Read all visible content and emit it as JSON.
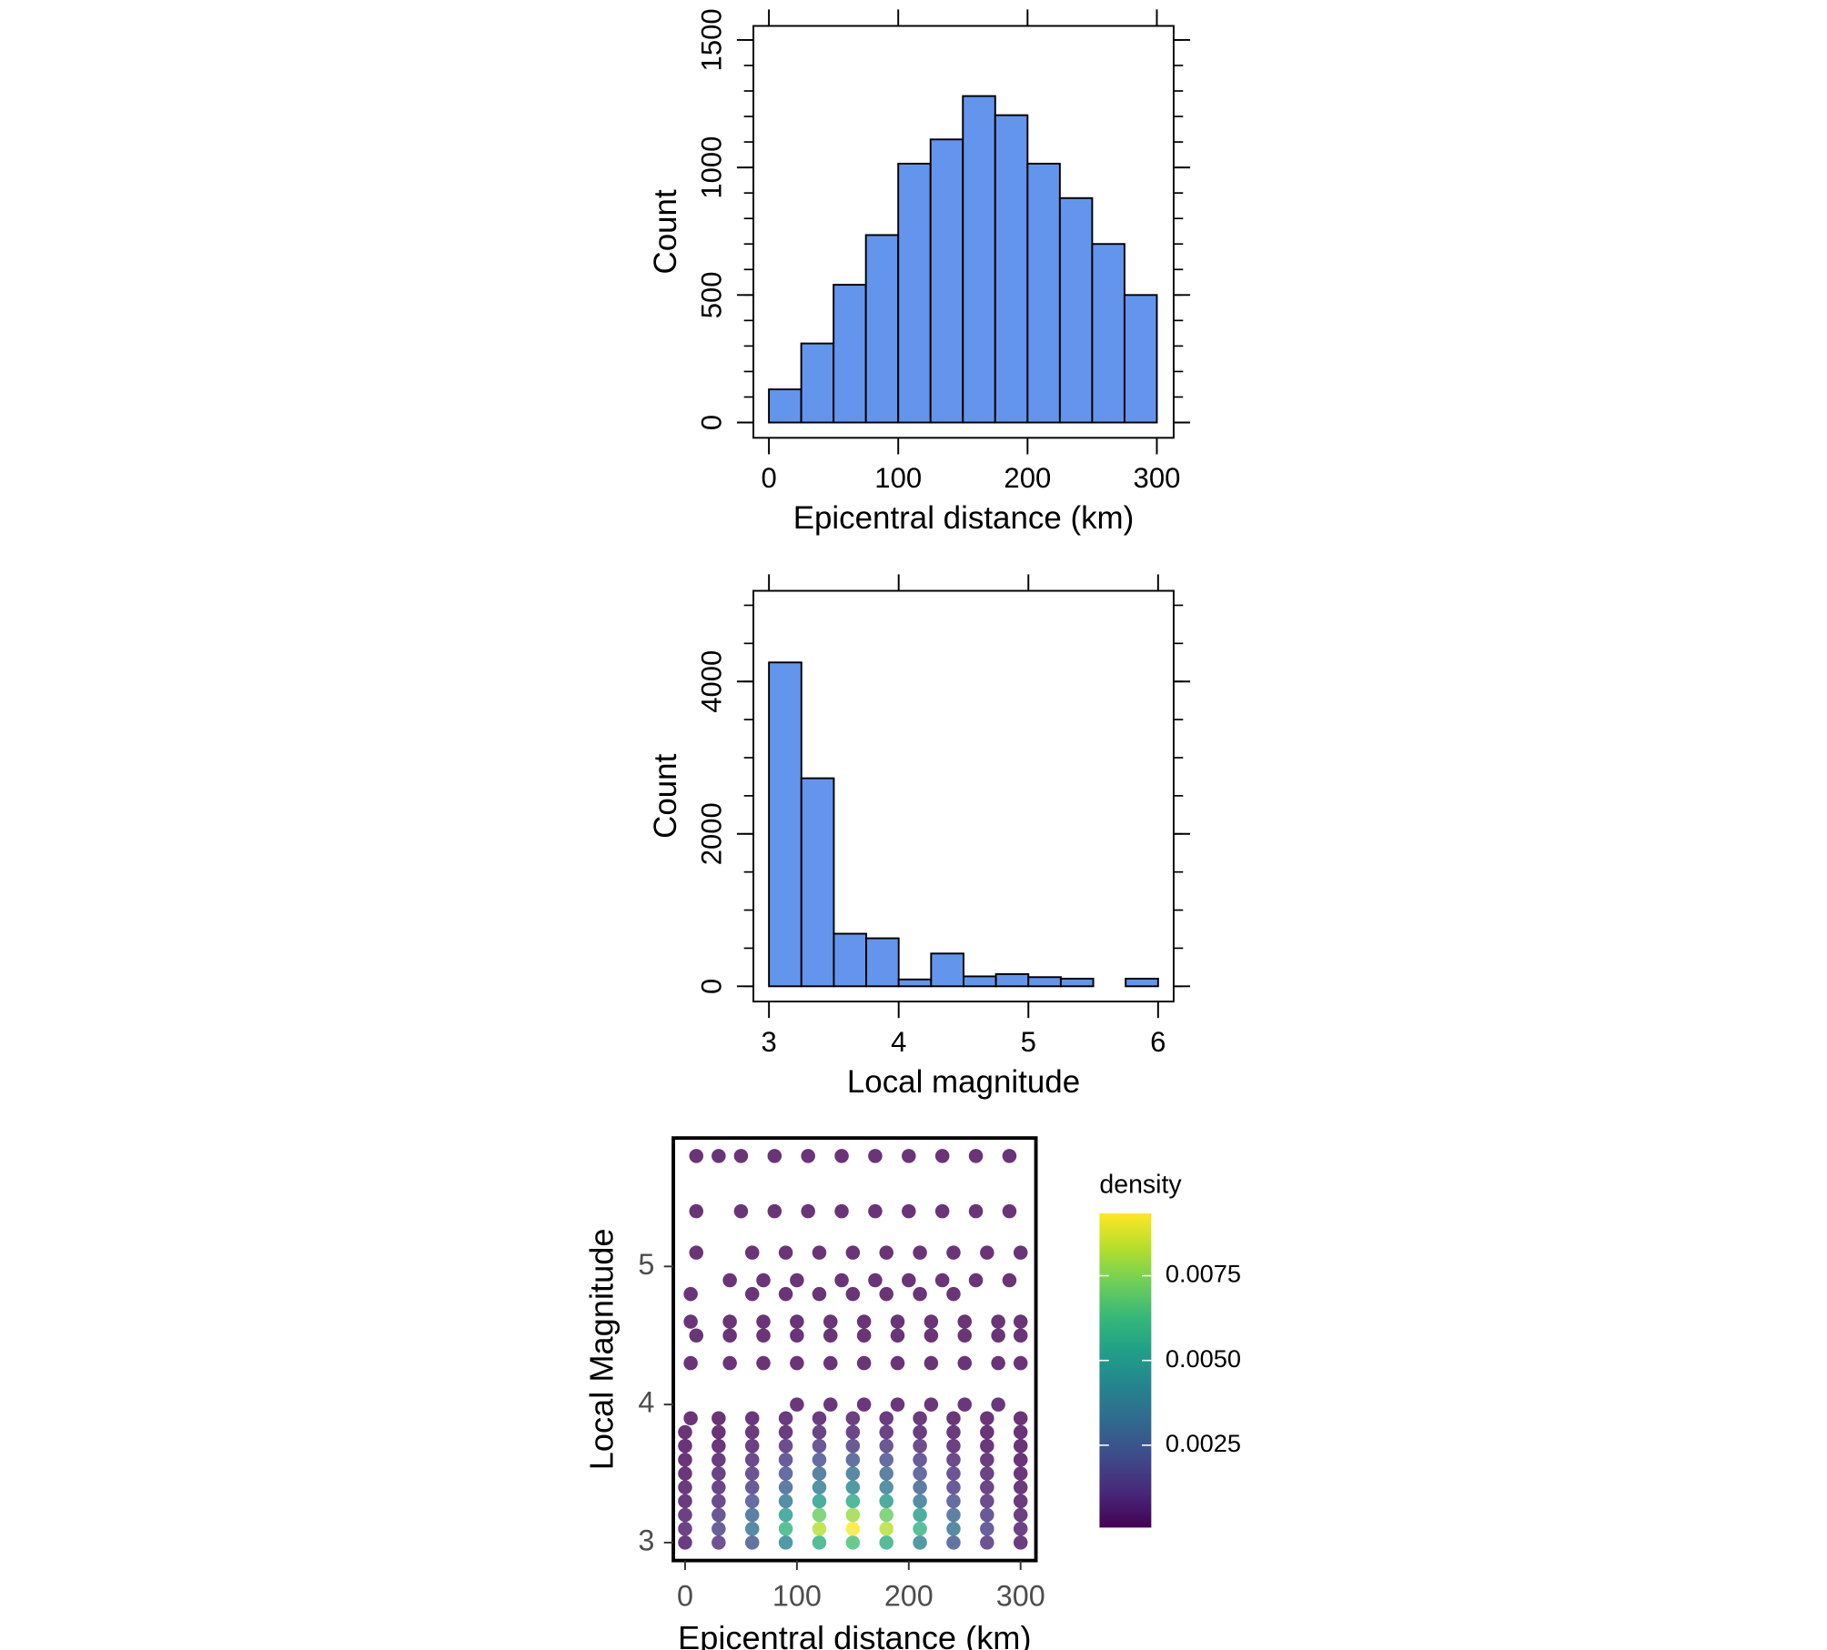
{
  "chart_data": [
    {
      "type": "histogram",
      "xlabel": "Epicentral distance (km)",
      "ylabel": "Count",
      "bins": [
        0,
        25,
        50,
        75,
        100,
        125,
        150,
        175,
        200,
        225,
        250,
        275,
        300
      ],
      "values": [
        130,
        310,
        540,
        735,
        1015,
        1110,
        1280,
        1205,
        1015,
        880,
        700,
        500
      ],
      "color": "#6495ed",
      "xlim": [
        -12,
        313
      ],
      "ylim": [
        -60,
        1555
      ],
      "xticks": [
        0,
        100,
        200,
        300
      ],
      "yticks": [
        0,
        500,
        1000,
        1500
      ],
      "yminorticks": [
        0,
        100,
        200,
        300,
        400,
        500,
        600,
        700,
        800,
        900,
        1000,
        1100,
        1200,
        1300,
        1400,
        1500
      ]
    },
    {
      "type": "histogram",
      "xlabel": "Local magnitude",
      "ylabel": "Count",
      "bins": [
        3.0,
        3.25,
        3.5,
        3.75,
        4.0,
        4.25,
        4.5,
        4.75,
        5.0,
        5.25,
        5.5,
        5.75,
        6.0
      ],
      "values": [
        4250,
        2730,
        690,
        630,
        90,
        430,
        130,
        160,
        120,
        100,
        0,
        100
      ],
      "color": "#6495ed",
      "xlim": [
        2.88,
        6.12
      ],
      "ylim": [
        -200,
        5190
      ],
      "xticks": [
        3,
        4,
        5,
        6
      ],
      "yticks": [
        0,
        2000,
        4000
      ],
      "yminorticks": [
        0,
        500,
        1000,
        1500,
        2000,
        2500,
        3000,
        3500,
        4000,
        4500,
        5000
      ]
    },
    {
      "type": "scatter",
      "xlabel": "Epicentral distance (km)",
      "ylabel": "Local Magnitude",
      "legend_title": "density",
      "colormap": "viridis",
      "xlim": [
        -10.5,
        313.7
      ],
      "ylim": [
        2.87,
        5.93
      ],
      "xticks": [
        0,
        100,
        200,
        300
      ],
      "yticks": [
        3,
        4,
        5
      ],
      "clim": [
        7e-05,
        0.00934
      ],
      "cticks": [
        0.0025,
        {
          "value": 0.005,
          "label": "0.0050"
        },
        0.0075
      ],
      "rows": [
        {
          "y": 3.0,
          "x": [
            0,
            30,
            60,
            90,
            120,
            150,
            180,
            210,
            240,
            270,
            300
          ],
          "density": [
            0.0004,
            0.0011,
            0.0024,
            0.0042,
            0.0058,
            0.0065,
            0.0058,
            0.0042,
            0.0024,
            0.0011,
            0.0004
          ]
        },
        {
          "y": 3.1,
          "x": [
            0,
            30,
            60,
            90,
            120,
            150,
            180,
            210,
            240,
            270,
            300
          ],
          "density": [
            0.0006,
            0.0016,
            0.0034,
            0.006,
            0.0083,
            0.0093,
            0.0083,
            0.006,
            0.0034,
            0.0016,
            0.0006
          ]
        },
        {
          "y": 3.2,
          "x": [
            0,
            30,
            60,
            90,
            120,
            150,
            180,
            210,
            240,
            270,
            300
          ],
          "density": [
            0.0005,
            0.0013,
            0.0029,
            0.0051,
            0.0071,
            0.0079,
            0.0071,
            0.0051,
            0.0029,
            0.0013,
            0.0005
          ]
        },
        {
          "y": 3.3,
          "x": [
            0,
            30,
            60,
            90,
            120,
            150,
            180,
            210,
            240,
            270,
            300
          ],
          "density": [
            0.0003,
            0.0009,
            0.0021,
            0.0036,
            0.005,
            0.0056,
            0.005,
            0.0036,
            0.0021,
            0.0009,
            0.0003
          ]
        },
        {
          "y": 3.4,
          "x": [
            0,
            30,
            60,
            90,
            120,
            150,
            180,
            210,
            240,
            270,
            300
          ],
          "density": [
            0.0003,
            0.0007,
            0.0015,
            0.0027,
            0.0038,
            0.0042,
            0.0038,
            0.0027,
            0.0015,
            0.0007,
            0.0003
          ]
        },
        {
          "y": 3.5,
          "x": [
            0,
            30,
            60,
            90,
            120,
            150,
            180,
            210,
            240,
            270,
            300
          ],
          "density": [
            0.0002,
            0.0006,
            0.0012,
            0.0021,
            0.003,
            0.0033,
            0.003,
            0.0021,
            0.0012,
            0.0006,
            0.0002
          ]
        },
        {
          "y": 3.6,
          "x": [
            0,
            30,
            60,
            90,
            120,
            150,
            180,
            210,
            240,
            270,
            300
          ],
          "density": [
            0.0001,
            0.0004,
            0.0008,
            0.0015,
            0.0021,
            0.0023,
            0.0021,
            0.0015,
            0.0008,
            0.0004,
            0.0001
          ]
        },
        {
          "y": 3.7,
          "x": [
            0,
            30,
            60,
            90,
            120,
            150,
            180,
            210,
            240,
            270,
            300
          ],
          "density": [
            0.0001,
            0.0002,
            0.0005,
            0.0009,
            0.0013,
            0.0014,
            0.0013,
            0.0009,
            0.0005,
            0.0002,
            0.0001
          ]
        },
        {
          "y": 3.8,
          "x": [
            0,
            30,
            60,
            90,
            120,
            150,
            180,
            210,
            240,
            270,
            300
          ],
          "density": [
            0.0001,
            0.0001,
            0.0003,
            0.0004,
            0.0006,
            0.0007,
            0.0006,
            0.0004,
            0.0003,
            0.0001,
            0.0001
          ]
        },
        {
          "y": 3.9,
          "x": [
            5,
            30,
            60,
            90,
            120,
            150,
            180,
            210,
            240,
            270,
            300
          ],
          "density": [
            0.0001,
            0.0001,
            0.0002,
            0.0003,
            0.0004,
            0.0005,
            0.0004,
            0.0003,
            0.0002,
            0.0001,
            0.0001
          ]
        },
        {
          "y": 4.0,
          "x": [
            100,
            130,
            160,
            190,
            220,
            250,
            280
          ],
          "density": [
            0.0002,
            0.0002,
            0.0002,
            0.0002,
            0.0002,
            0.0002,
            0.0002
          ]
        },
        {
          "y": 4.3,
          "x": [
            5,
            40,
            70,
            100,
            130,
            160,
            190,
            220,
            250,
            280,
            300
          ],
          "density": [
            0.0001,
            0.0001,
            0.0001,
            0.0001,
            0.0001,
            0.0001,
            0.0001,
            0.0001,
            0.0001,
            0.0001,
            0.0001
          ]
        },
        {
          "y": 4.5,
          "x": [
            10,
            40,
            70,
            100,
            130,
            160,
            190,
            220,
            250,
            280,
            300
          ],
          "density": [
            0.0001,
            0.0001,
            0.0001,
            0.0001,
            0.0001,
            0.0001,
            0.0001,
            0.0001,
            0.0001,
            0.0001,
            0.0001
          ]
        },
        {
          "y": 4.6,
          "x": [
            5,
            40,
            70,
            100,
            130,
            160,
            190,
            220,
            250,
            280,
            300
          ],
          "density": [
            0.0001,
            0.0001,
            0.0001,
            0.0001,
            0.0001,
            0.0001,
            0.0001,
            0.0001,
            0.0001,
            0.0001,
            0.0001
          ]
        },
        {
          "y": 4.8,
          "x": [
            5,
            60,
            90,
            120,
            150,
            180,
            210,
            240
          ],
          "density": [
            0.0001,
            0.0001,
            0.0001,
            0.0001,
            0.0001,
            0.0001,
            0.0001,
            0.0001
          ]
        },
        {
          "y": 4.9,
          "x": [
            40,
            70,
            100,
            140,
            170,
            200,
            230,
            260,
            290
          ],
          "density": [
            0.0001,
            0.0001,
            0.0001,
            0.0001,
            0.0001,
            0.0001,
            0.0001,
            0.0001,
            0.0001
          ]
        },
        {
          "y": 5.1,
          "x": [
            10,
            60,
            90,
            120,
            150,
            180,
            210,
            240,
            270,
            300
          ],
          "density": [
            0.0001,
            0.0001,
            0.0001,
            0.0001,
            0.0001,
            0.0001,
            0.0001,
            0.0001,
            0.0001,
            0.0001
          ]
        },
        {
          "y": 5.4,
          "x": [
            10,
            50,
            80,
            110,
            140,
            170,
            200,
            230,
            260,
            290
          ],
          "density": [
            0.0001,
            0.0001,
            0.0001,
            0.0001,
            0.0001,
            0.0001,
            0.0001,
            0.0001,
            0.0001,
            0.0001
          ]
        },
        {
          "y": 5.8,
          "x": [
            10,
            30,
            50,
            80,
            110,
            140,
            170,
            200,
            230,
            260,
            290
          ],
          "density": [
            0.0001,
            0.0001,
            0.0001,
            0.0001,
            0.0001,
            0.0001,
            0.0001,
            0.0001,
            0.0001,
            0.0001,
            0.0001
          ]
        }
      ]
    }
  ]
}
